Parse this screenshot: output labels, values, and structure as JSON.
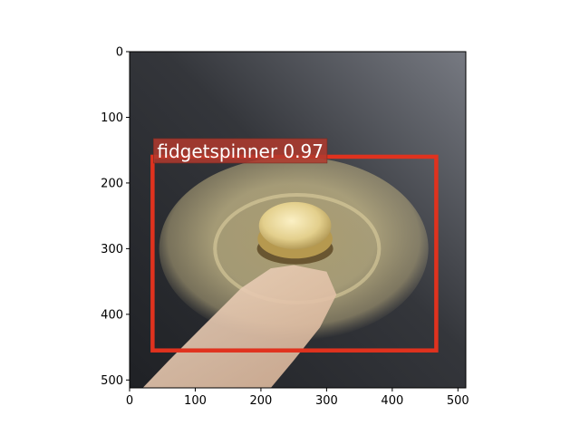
{
  "chart_data": {
    "type": "image-detection",
    "image_width": 512,
    "image_height": 512,
    "xlim": [
      0,
      512
    ],
    "ylim": [
      512,
      0
    ],
    "xticks": [
      0,
      100,
      200,
      300,
      400,
      500
    ],
    "yticks": [
      0,
      100,
      200,
      300,
      400,
      500
    ],
    "grid": false,
    "detections": [
      {
        "label": "fidgetspinner 0.97",
        "class": "fidgetspinner",
        "score": 0.97,
        "box": {
          "x1": 35,
          "y1": 160,
          "x2": 467,
          "y2": 455
        },
        "color": "#e0321e"
      }
    ]
  },
  "colors": {
    "box": "#e0321e",
    "label_bg": "#b03a2e",
    "bg_dark": "#2e3034",
    "bg_light": "#70737b",
    "spinner_gold": "#cdbb86",
    "finger": "#e8c9b1"
  }
}
